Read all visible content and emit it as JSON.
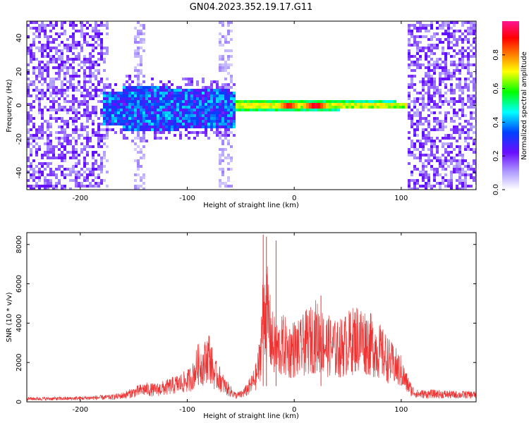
{
  "figure": {
    "title": "GN04.2023.352.19.17.G11"
  },
  "chart_data": [
    {
      "type": "heatmap",
      "xlabel": "Height of straight line (km)",
      "ylabel": "Frequency (Hz)",
      "xlim": [
        -250,
        170
      ],
      "ylim": [
        -50,
        50
      ],
      "x_ticks": [
        -200,
        -100,
        0,
        100
      ],
      "x_tick_labels": [
        "-200",
        "-100",
        "0",
        "100"
      ],
      "y_ticks": [
        -40,
        -20,
        0,
        20,
        40
      ],
      "y_tick_labels": [
        "-40",
        "-20",
        "0",
        "20",
        "40"
      ],
      "colorbar": {
        "label": "Normalized spectral amplitude",
        "range": [
          0,
          1
        ],
        "ticks": [
          0.0,
          0.2,
          0.4,
          0.6,
          0.8
        ],
        "tick_labels": [
          "0.0",
          "0.2",
          "0.4",
          "0.6",
          "0.8"
        ],
        "colors": [
          "#ffffff",
          "#b3a1ff",
          "#6a0dff",
          "#0040ff",
          "#00ffff",
          "#00ff00",
          "#ffff00",
          "#ff8000",
          "#ff0000",
          "#ff1493"
        ]
      },
      "regions": [
        {
          "x_range": [
            -250,
            -180
          ],
          "freq_range": [
            -50,
            50
          ],
          "amplitude": 0.1
        },
        {
          "x_range": [
            -180,
            -160
          ],
          "freq_range": [
            -12,
            12
          ],
          "amplitude": 0.15
        },
        {
          "x_range": [
            -160,
            -55
          ],
          "freq_range": [
            -15,
            15
          ],
          "amplitude": 0.3
        },
        {
          "x_range": [
            -55,
            105
          ],
          "freq_range": [
            -3,
            3
          ],
          "amplitude": 0.6
        },
        {
          "x_range": [
            105,
            170
          ],
          "freq_range": [
            -50,
            50
          ],
          "amplitude": 0.1
        }
      ],
      "peaks": [
        {
          "x": 20,
          "freq": 0,
          "amplitude": 0.95
        },
        {
          "x": -5,
          "freq": -1,
          "amplitude": 0.9
        }
      ],
      "grid": false
    },
    {
      "type": "line",
      "xlabel": "Height of straight line (km)",
      "ylabel": "SNR (10 * v/v)",
      "xlim": [
        -250,
        170
      ],
      "ylim": [
        0,
        8600
      ],
      "x_ticks": [
        -200,
        -100,
        0,
        100
      ],
      "x_tick_labels": [
        "-200",
        "-100",
        "0",
        "100"
      ],
      "y_ticks": [
        0,
        2000,
        4000,
        6000,
        8000
      ],
      "y_tick_labels": [
        "0",
        "2000",
        "4000",
        "6000",
        "8000"
      ],
      "color": "#ee3333",
      "series": [
        {
          "x": [
            -250,
            -230,
            -210,
            -190,
            -170,
            -160,
            -150,
            -140,
            -130,
            -120,
            -110,
            -100,
            -95,
            -90,
            -85,
            -80,
            -75,
            -70,
            -65,
            -60,
            -55,
            -50,
            -45,
            -40,
            -35,
            -32,
            -30,
            -28,
            -25,
            -22,
            -20,
            -15,
            -10,
            -5,
            0,
            5,
            10,
            15,
            20,
            30,
            40,
            50,
            60,
            70,
            80,
            90,
            100,
            105,
            110,
            115,
            130,
            150,
            170
          ],
          "values": [
            200,
            200,
            210,
            250,
            300,
            400,
            600,
            800,
            750,
            900,
            1100,
            1300,
            1600,
            2400,
            2300,
            3000,
            1800,
            1500,
            1000,
            700,
            400,
            450,
            700,
            1100,
            1700,
            2800,
            4800,
            6000,
            5500,
            4200,
            3600,
            3300,
            3600,
            3200,
            3400,
            3300,
            3700,
            3900,
            4200,
            3600,
            3300,
            3700,
            4100,
            3700,
            3200,
            2500,
            1900,
            1200,
            700,
            500,
            500,
            450,
            450
          ]
        }
      ],
      "spikes": [
        {
          "x": -29,
          "values": 8500
        },
        {
          "x": -26,
          "values": 8400
        },
        {
          "x": -17,
          "values": 8200
        },
        {
          "x": 25,
          "values": 5400
        }
      ],
      "grid": false
    }
  ]
}
